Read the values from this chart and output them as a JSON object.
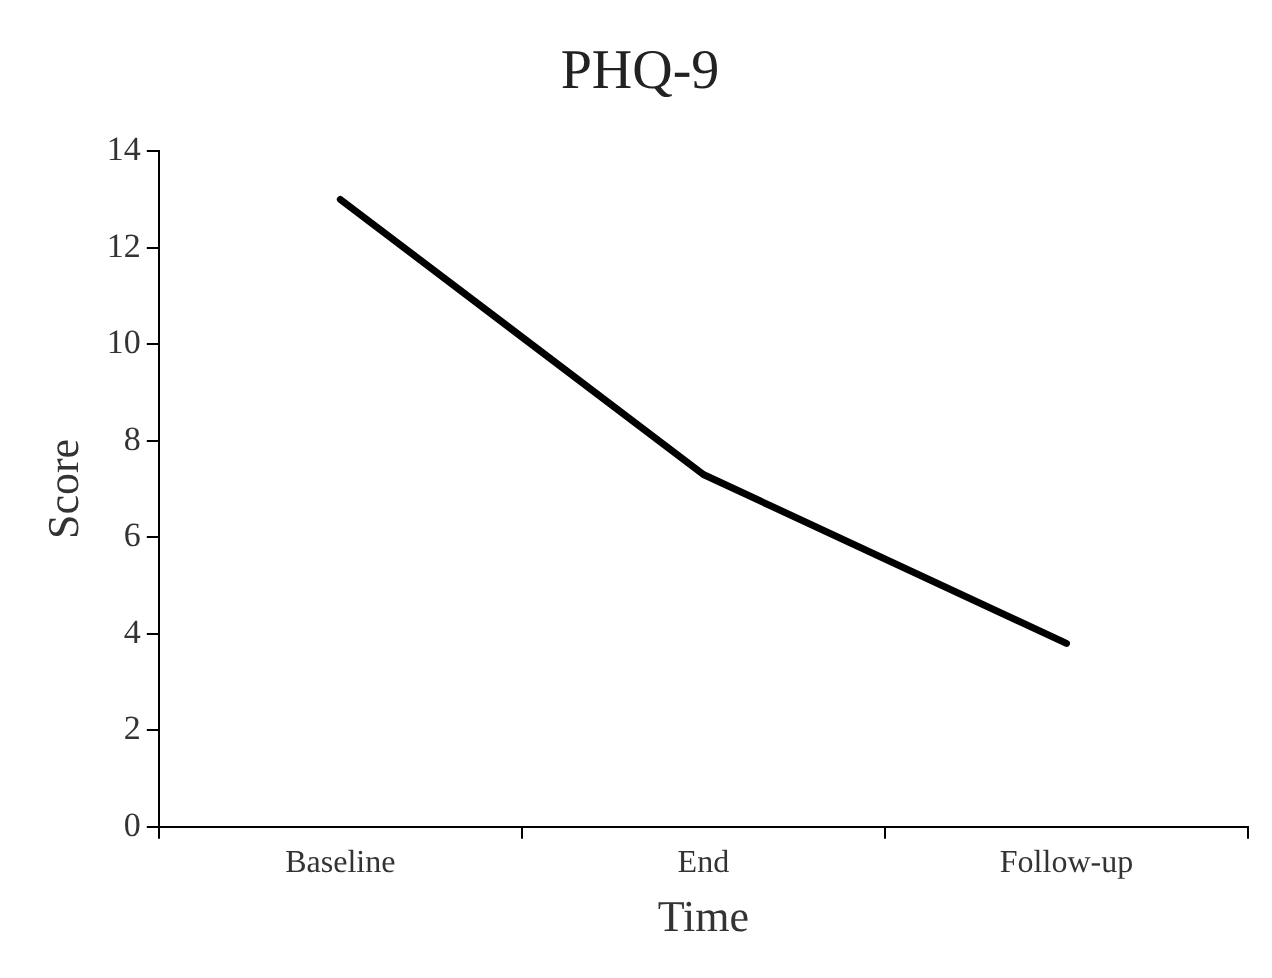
{
  "chart_data": {
    "type": "line",
    "title": "PHQ-9",
    "xlabel": "Time",
    "ylabel": "Score",
    "categories": [
      "Baseline",
      "End",
      "Follow-up"
    ],
    "series": [
      {
        "color": "#000000",
        "values": [
          13,
          7.3,
          3.8
        ]
      }
    ],
    "ylim": [
      0,
      14
    ],
    "yticks": [
      0,
      2,
      4,
      6,
      8,
      10,
      12,
      14
    ],
    "marker": "none",
    "line_style": "solid",
    "legend": false
  }
}
